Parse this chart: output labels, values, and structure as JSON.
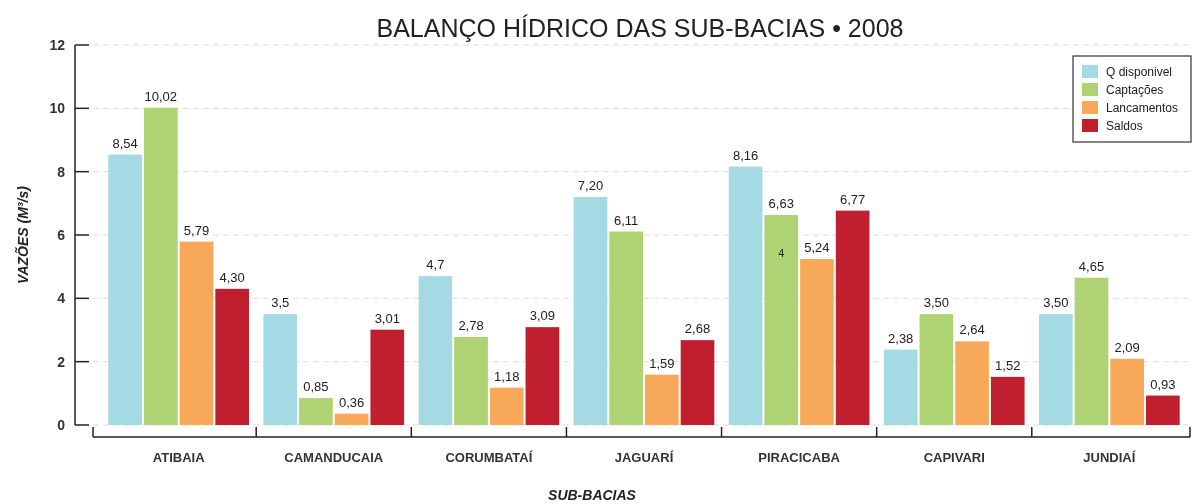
{
  "chart_data": {
    "type": "bar",
    "title": "BALANÇO HÍDRICO DAS SUB-BACIAS • 2008",
    "xlabel": "SUB-BACIAS",
    "ylabel": "VAZÕES (M³/s)",
    "categories": [
      "ATIBAIA",
      "CAMANDUCAIA",
      "CORUMBATAÍ",
      "JAGUARÍ",
      "PIRACICABA",
      "CAPIVARI",
      "JUNDIAÍ"
    ],
    "series": [
      {
        "name": "Q disponivel",
        "color": "#a3dae4",
        "values": [
          8.54,
          3.5,
          4.7,
          7.2,
          8.16,
          2.38,
          3.5
        ],
        "value_labels": [
          "8,54",
          "3,5",
          "4,7",
          "7,20",
          "8,16",
          "2,38",
          "3,50"
        ]
      },
      {
        "name": "Captações",
        "color": "#afd373",
        "values": [
          10.02,
          0.85,
          2.78,
          6.11,
          6.63,
          3.5,
          4.65
        ],
        "value_labels": [
          "10,02",
          "0,85",
          "2,78",
          "6,11",
          "6,63",
          "3,50",
          "4,65"
        ]
      },
      {
        "name": "Lancamentos",
        "color": "#f7a959",
        "values": [
          5.79,
          0.36,
          1.18,
          1.59,
          5.24,
          2.64,
          2.09
        ],
        "value_labels": [
          "5,79",
          "0,36",
          "1,18",
          "1,59",
          "5,24",
          "2,64",
          "2,09"
        ]
      },
      {
        "name": "Saldos",
        "color": "#c01f2f",
        "values": [
          4.3,
          3.01,
          3.09,
          2.68,
          6.77,
          1.52,
          0.93
        ],
        "value_labels": [
          "4,30",
          "3,01",
          "3,09",
          "2,68",
          "6,77",
          "1,52",
          "0,93"
        ]
      }
    ],
    "annotations": [
      {
        "text": "4",
        "x": "PIRACICABA",
        "y": 5.3
      }
    ],
    "ylim": [
      0,
      12
    ],
    "yticks": [
      0,
      2,
      4,
      6,
      8,
      10,
      12
    ],
    "grid": "y",
    "legend": "top right"
  }
}
